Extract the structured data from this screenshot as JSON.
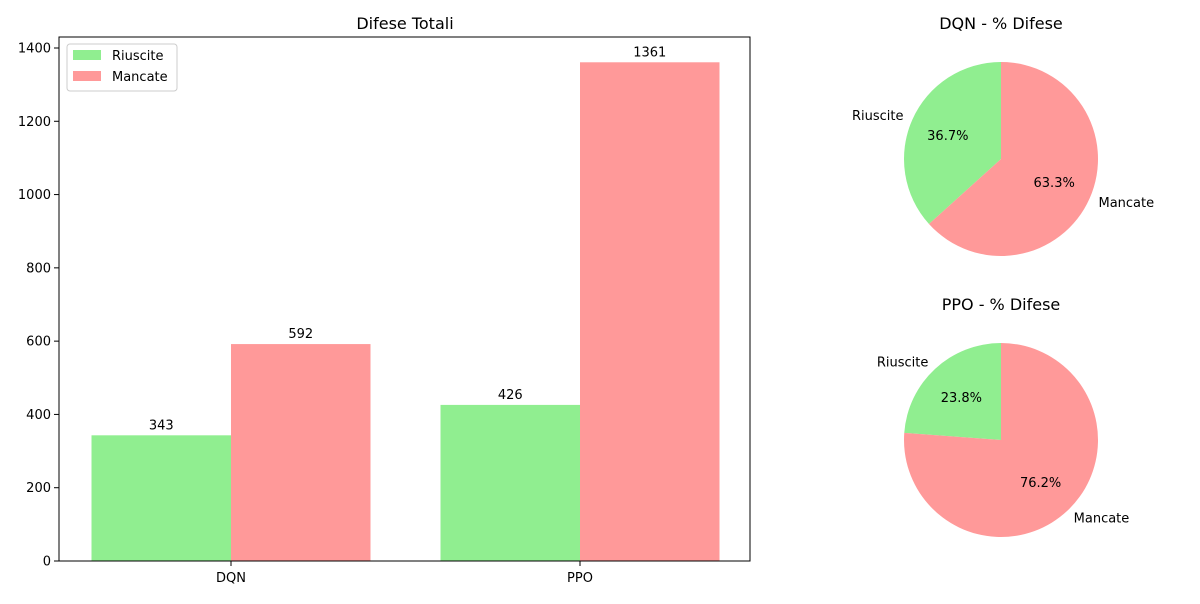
{
  "chart_data": [
    {
      "type": "bar",
      "title": "Difese Totali",
      "xlabel": "",
      "ylabel": "",
      "categories": [
        "DQN",
        "PPO"
      ],
      "series": [
        {
          "name": "Riuscite",
          "values": [
            343,
            426
          ],
          "color": "#90ee90"
        },
        {
          "name": "Mancate",
          "values": [
            592,
            1361
          ],
          "color": "#ff9999"
        }
      ],
      "ylim": [
        0,
        1430
      ],
      "yticks": [
        0,
        200,
        400,
        600,
        800,
        1000,
        1200,
        1400
      ],
      "grid": false,
      "legend": "top-left"
    },
    {
      "type": "pie",
      "title": "DQN - % Difese",
      "labels": [
        "Riuscite",
        "Mancate"
      ],
      "values": [
        343,
        592
      ],
      "percent_labels": [
        "36.7%",
        "63.3%"
      ],
      "colors": [
        "#90ee90",
        "#ff9999"
      ]
    },
    {
      "type": "pie",
      "title": "PPO - % Difese",
      "labels": [
        "Riuscite",
        "Mancate"
      ],
      "values": [
        426,
        1361
      ],
      "percent_labels": [
        "23.8%",
        "76.2%"
      ],
      "colors": [
        "#90ee90",
        "#ff9999"
      ]
    }
  ]
}
